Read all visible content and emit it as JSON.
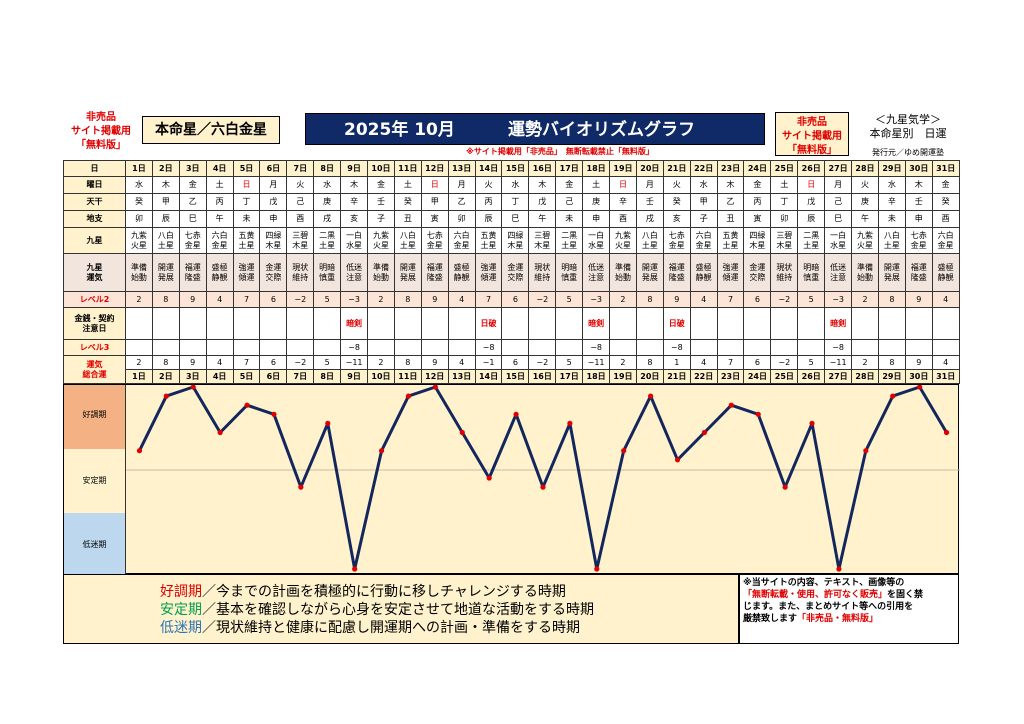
{
  "header": {
    "nb_left": [
      "非売品",
      "サイト掲載用",
      "「無料版」"
    ],
    "honmei": "本命星／六白金星",
    "title_main": "2025年 10月",
    "title_sub": "運勢バイオリズムグラフ",
    "nb_right": [
      "非売品",
      "サイト掲載用",
      "「無料版」"
    ],
    "kyusei_title": "＜九星気学＞",
    "kyusei_sub": "本命星別　日運",
    "publisher": "発行元／ゆめ開運塾",
    "notice": "※サイト掲載用「非売品」　無断転載禁止「無料版」"
  },
  "row_labels": {
    "day": "日",
    "weekday": "曜日",
    "tenkan": "天干",
    "chishi": "地支",
    "kyusei": "九星",
    "unki": [
      "九星",
      "運気"
    ],
    "level2": "レベル2",
    "kinsen": [
      "金銭・契約",
      "注意日"
    ],
    "level3": "レベル3",
    "total": [
      "運気",
      "総合運"
    ]
  },
  "days": [
    "1日",
    "2日",
    "3日",
    "4日",
    "5日",
    "6日",
    "7日",
    "8日",
    "9日",
    "10日",
    "11日",
    "12日",
    "13日",
    "14日",
    "15日",
    "16日",
    "17日",
    "18日",
    "19日",
    "20日",
    "21日",
    "22日",
    "23日",
    "24日",
    "25日",
    "26日",
    "27日",
    "28日",
    "29日",
    "30日",
    "31日"
  ],
  "weekdays": [
    "水",
    "木",
    "金",
    "土",
    "日",
    "月",
    "火",
    "水",
    "木",
    "金",
    "土",
    "日",
    "月",
    "火",
    "水",
    "木",
    "金",
    "土",
    "日",
    "月",
    "火",
    "水",
    "木",
    "金",
    "土",
    "日",
    "月",
    "火",
    "水",
    "木",
    "金"
  ],
  "weekday_colors": {
    "red": [
      "日"
    ]
  },
  "tenkan": [
    "癸",
    "甲",
    "乙",
    "丙",
    "丁",
    "戊",
    "己",
    "庚",
    "辛",
    "壬",
    "癸",
    "甲",
    "乙",
    "丙",
    "丁",
    "戊",
    "己",
    "庚",
    "辛",
    "壬",
    "癸",
    "甲",
    "乙",
    "丙",
    "丁",
    "戊",
    "己",
    "庚",
    "辛",
    "壬",
    "癸"
  ],
  "chishi": [
    "卯",
    "辰",
    "巳",
    "午",
    "未",
    "申",
    "酉",
    "戌",
    "亥",
    "子",
    "丑",
    "寅",
    "卯",
    "辰",
    "巳",
    "午",
    "未",
    "申",
    "酉",
    "戌",
    "亥",
    "子",
    "丑",
    "寅",
    "卯",
    "辰",
    "巳",
    "午",
    "未",
    "申",
    "酉"
  ],
  "kyusei": [
    [
      "九紫",
      "火星"
    ],
    [
      "八白",
      "土星"
    ],
    [
      "七赤",
      "金星"
    ],
    [
      "六白",
      "金星"
    ],
    [
      "五黄",
      "土星"
    ],
    [
      "四緑",
      "木星"
    ],
    [
      "三碧",
      "木星"
    ],
    [
      "二黒",
      "土星"
    ],
    [
      "一白",
      "水星"
    ],
    [
      "九紫",
      "火星"
    ],
    [
      "八白",
      "土星"
    ],
    [
      "七赤",
      "金星"
    ],
    [
      "六白",
      "金星"
    ],
    [
      "五黄",
      "土星"
    ],
    [
      "四緑",
      "木星"
    ],
    [
      "三碧",
      "木星"
    ],
    [
      "二黒",
      "土星"
    ],
    [
      "一白",
      "水星"
    ],
    [
      "九紫",
      "火星"
    ],
    [
      "八白",
      "土星"
    ],
    [
      "七赤",
      "金星"
    ],
    [
      "六白",
      "金星"
    ],
    [
      "五黄",
      "土星"
    ],
    [
      "四緑",
      "木星"
    ],
    [
      "三碧",
      "木星"
    ],
    [
      "二黒",
      "土星"
    ],
    [
      "一白",
      "水星"
    ],
    [
      "九紫",
      "火星"
    ],
    [
      "八白",
      "土星"
    ],
    [
      "七赤",
      "金星"
    ],
    [
      "六白",
      "金星"
    ]
  ],
  "unki": [
    [
      "準備",
      "始動"
    ],
    [
      "開運",
      "発展"
    ],
    [
      "福運",
      "隆盛"
    ],
    [
      "盛極",
      "静観"
    ],
    [
      "強運",
      "傾運"
    ],
    [
      "金運",
      "交際"
    ],
    [
      "現状",
      "維持"
    ],
    [
      "明暗",
      "慎重"
    ],
    [
      "低迷",
      "注意"
    ],
    [
      "準備",
      "始動"
    ],
    [
      "開運",
      "発展"
    ],
    [
      "福運",
      "隆盛"
    ],
    [
      "盛極",
      "静観"
    ],
    [
      "強運",
      "傾運"
    ],
    [
      "金運",
      "交際"
    ],
    [
      "現状",
      "維持"
    ],
    [
      "明暗",
      "慎重"
    ],
    [
      "低迷",
      "注意"
    ],
    [
      "準備",
      "始動"
    ],
    [
      "開運",
      "発展"
    ],
    [
      "福運",
      "隆盛"
    ],
    [
      "盛極",
      "静観"
    ],
    [
      "強運",
      "傾運"
    ],
    [
      "金運",
      "交際"
    ],
    [
      "現状",
      "維持"
    ],
    [
      "明暗",
      "慎重"
    ],
    [
      "低迷",
      "注意"
    ],
    [
      "準備",
      "始動"
    ],
    [
      "開運",
      "発展"
    ],
    [
      "福運",
      "隆盛"
    ],
    [
      "盛極",
      "静観"
    ]
  ],
  "level2": [
    "2",
    "8",
    "9",
    "4",
    "7",
    "6",
    "−2",
    "5",
    "−3",
    "2",
    "8",
    "9",
    "4",
    "7",
    "6",
    "−2",
    "5",
    "−3",
    "2",
    "8",
    "9",
    "4",
    "7",
    "6",
    "−2",
    "5",
    "−3",
    "2",
    "8",
    "9",
    "4"
  ],
  "kinsen": [
    "",
    "",
    "",
    "",
    "",
    "",
    "",
    "",
    "暗剣",
    "",
    "",
    "",
    "",
    "日破",
    "",
    "",
    "",
    "暗剣",
    "",
    "",
    "日破",
    "",
    "",
    "",
    "",
    "",
    "暗剣",
    "",
    "",
    "",
    ""
  ],
  "level3": [
    "",
    "",
    "",
    "",
    "",
    "",
    "",
    "",
    "−8",
    "",
    "",
    "",
    "",
    "−8",
    "",
    "",
    "",
    "−8",
    "",
    "",
    "−8",
    "",
    "",
    "",
    "",
    "",
    "−8",
    "",
    "",
    "",
    ""
  ],
  "total": [
    "2",
    "8",
    "9",
    "4",
    "7",
    "6",
    "−2",
    "5",
    "−11",
    "2",
    "8",
    "9",
    "4",
    "−1",
    "6",
    "−2",
    "5",
    "−11",
    "2",
    "8",
    "1",
    "4",
    "7",
    "6",
    "−2",
    "5",
    "−11",
    "2",
    "8",
    "9",
    "4"
  ],
  "chart_data": {
    "type": "line",
    "x": [
      "1日",
      "2日",
      "3日",
      "4日",
      "5日",
      "6日",
      "7日",
      "8日",
      "9日",
      "10日",
      "11日",
      "12日",
      "13日",
      "14日",
      "15日",
      "16日",
      "17日",
      "18日",
      "19日",
      "20日",
      "21日",
      "22日",
      "23日",
      "24日",
      "25日",
      "26日",
      "27日",
      "28日",
      "29日",
      "30日",
      "31日"
    ],
    "values": [
      2,
      8,
      9,
      4,
      7,
      6,
      -2,
      5,
      -11,
      2,
      8,
      9,
      4,
      -1,
      6,
      -2,
      5,
      -11,
      2,
      8,
      1,
      4,
      7,
      6,
      -2,
      5,
      -11,
      2,
      8,
      9,
      4
    ],
    "ylim": [
      -11,
      9
    ],
    "zones": [
      "好調期",
      "安定期",
      "低迷期"
    ],
    "line_color": "#13275e",
    "marker_color": "#e00000"
  },
  "legend": [
    {
      "term": "好調期",
      "text": "／今までの計画を積極的に行動に移しチャレンジする時期"
    },
    {
      "term": "安定期",
      "text": "／基本を確認しながら心身を安定させて地道な活動をする時期"
    },
    {
      "term": "低迷期",
      "text": "／現状維持と健康に配慮し開運期への計画・準備をする時期"
    }
  ],
  "copyright": {
    "line1": "※当サイトの内容、テキスト、画像等の",
    "line2_red": "「無断転載・使用、許可なく販売」",
    "line2_tail": "を固く禁",
    "line3": "じます。また、まとめサイト等への引用を",
    "line4_head": "厳禁致します",
    "line4_red": "「非売品・無料版」"
  }
}
